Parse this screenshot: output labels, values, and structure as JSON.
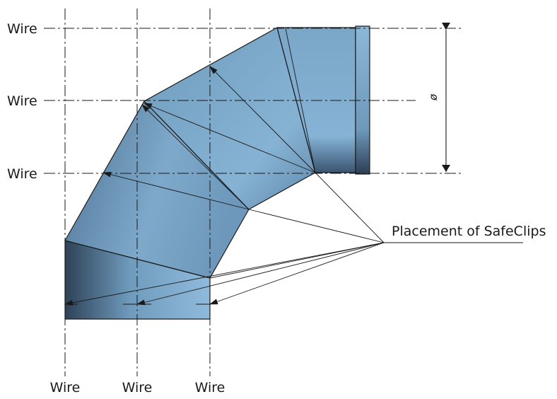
{
  "diagram": {
    "wire_labels": {
      "horizontal": [
        "Wire",
        "Wire",
        "Wire"
      ],
      "vertical": [
        "Wire",
        "Wire",
        "Wire"
      ]
    },
    "callout_label": "Placement of SafeClips",
    "diameter_symbol": "ø",
    "colors": {
      "pipe_light": "#8bb6d6",
      "pipe_mid": "#6f9bbd",
      "pipe_dark": "#283a4d",
      "line": "#1a1a1a"
    }
  }
}
